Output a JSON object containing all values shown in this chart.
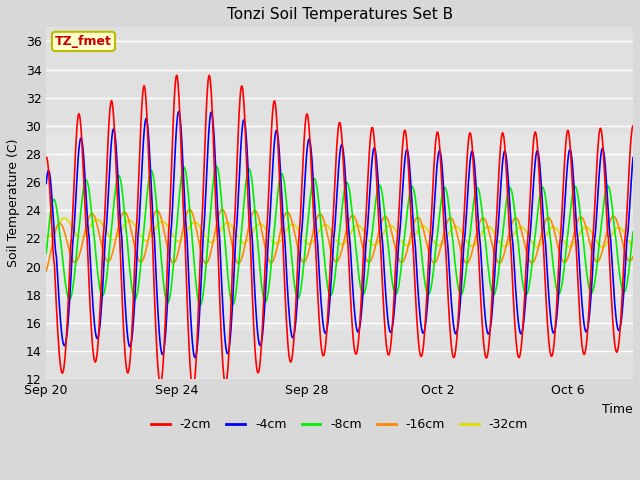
{
  "title": "Tonzi Soil Temperatures Set B",
  "xlabel": "Time",
  "ylabel": "Soil Temperature (C)",
  "ylim": [
    12,
    37
  ],
  "yticks": [
    12,
    14,
    16,
    18,
    20,
    22,
    24,
    26,
    28,
    30,
    32,
    34,
    36
  ],
  "annotation_text": "TZ_fmet",
  "annotation_color": "#cc0000",
  "annotation_bg": "#ffffcc",
  "annotation_border": "#bbbb00",
  "fig_bg": "#d8d8d8",
  "plot_bg": "#e0e0e0",
  "line_colors": {
    "-2cm": "#ff0000",
    "-4cm": "#0000ff",
    "-8cm": "#00ee00",
    "-16cm": "#ff8800",
    "-32cm": "#dddd00"
  },
  "xtick_labels": [
    "Sep 20",
    "Sep 24",
    "Sep 28",
    "Oct 2",
    "Oct 6"
  ],
  "xtick_positions": [
    0,
    4,
    8,
    12,
    16
  ],
  "num_days": 18,
  "pts_per_day": 48,
  "base_mean": 22.0,
  "amp2": 8.0,
  "amp4": 6.5,
  "amp8": 3.8,
  "amp16": 1.6,
  "amp32": 0.7
}
